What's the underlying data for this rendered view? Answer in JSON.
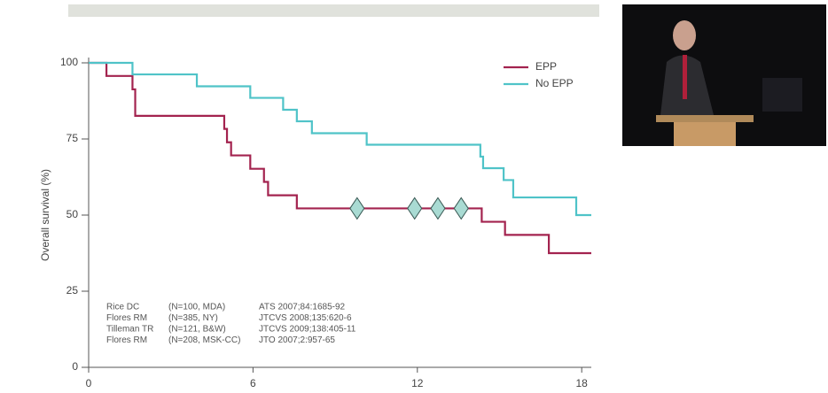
{
  "chart_data": {
    "type": "step",
    "ylabel": "Overall survival (%)",
    "xlim": [
      0,
      18.35
    ],
    "ylim": [
      0,
      100
    ],
    "xticks": [
      0,
      6,
      12,
      18
    ],
    "yticks": [
      0,
      25,
      50,
      75,
      100
    ],
    "legend": "upper right",
    "series": [
      {
        "name": "EPP",
        "color": "#a3234f",
        "x": [
          0,
          0.65,
          1.6,
          1.7,
          4.95,
          5.05,
          5.2,
          5.9,
          6.4,
          6.55,
          7.6,
          14.35,
          15.2,
          16.8,
          18.35
        ],
        "values": [
          100,
          95.7,
          91.3,
          82.6,
          78.3,
          73.9,
          69.6,
          65.2,
          60.9,
          56.5,
          52.2,
          47.8,
          43.5,
          37.5,
          37.5
        ]
      },
      {
        "name": "No EPP",
        "color": "#4fc3c8",
        "x": [
          0,
          1.6,
          3.95,
          5.9,
          7.1,
          7.6,
          8.15,
          10.15,
          14.3,
          14.4,
          15.15,
          15.5,
          17.8,
          18.35
        ],
        "values": [
          100,
          96.2,
          92.3,
          88.5,
          84.6,
          80.8,
          76.9,
          73.1,
          69.2,
          65.4,
          61.5,
          55.8,
          50,
          50
        ]
      }
    ],
    "censored": {
      "color": "#a9dbd3",
      "x": [
        9.8,
        11.9,
        12.75,
        13.6
      ],
      "values": [
        52.2,
        52.2,
        52.2,
        52.2
      ]
    },
    "annotations": [
      [
        "Rice DC",
        "(N=100, MDA)",
        "ATS 2007;84:1685-92"
      ],
      [
        "Flores RM",
        "(N=385, NY)",
        "JTCVS 2008;135:620-6"
      ],
      [
        "Tilleman TR",
        "(N=121, B&W)",
        "JTCVS 2009;138:405-11"
      ],
      [
        "Flores RM",
        "(N=208, MSK-CC)",
        "JTO 2007;2:957-65"
      ]
    ]
  }
}
